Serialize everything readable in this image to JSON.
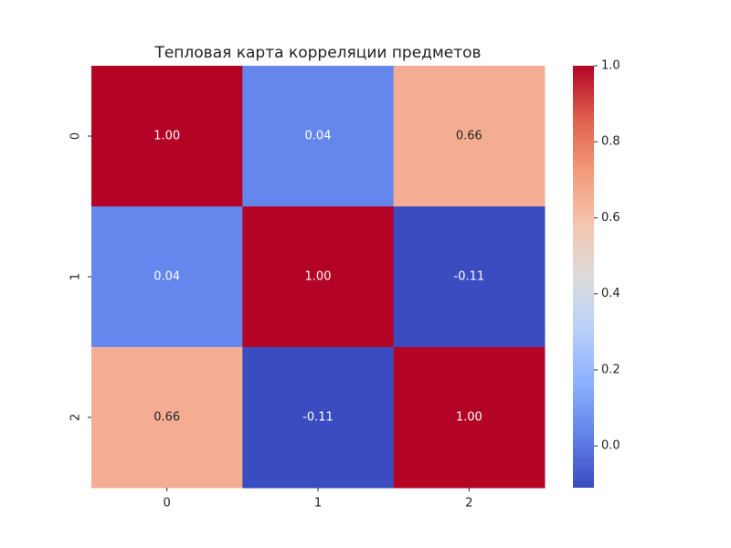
{
  "chart_data": {
    "type": "heatmap",
    "title": "Тепловая карта корреляции предметов",
    "x_categories": [
      "0",
      "1",
      "2"
    ],
    "y_categories": [
      "0",
      "1",
      "2"
    ],
    "values": [
      [
        1,
        0.04,
        0.66
      ],
      [
        0.04,
        1,
        -0.11
      ],
      [
        0.66,
        -0.11,
        1
      ]
    ],
    "value_labels": [
      [
        "1.00",
        "0.04",
        "0.66"
      ],
      [
        "0.04",
        "1.00",
        "-0.11"
      ],
      [
        "0.66",
        "-0.11",
        "1.00"
      ]
    ],
    "colormap": "coolwarm",
    "clim": [
      -0.11,
      1
    ],
    "cticks": [
      {
        "value": 0,
        "label": "0.0"
      },
      0.2,
      0.4,
      0.6,
      0.8,
      {
        "value": 1,
        "label": "1.0"
      }
    ]
  }
}
